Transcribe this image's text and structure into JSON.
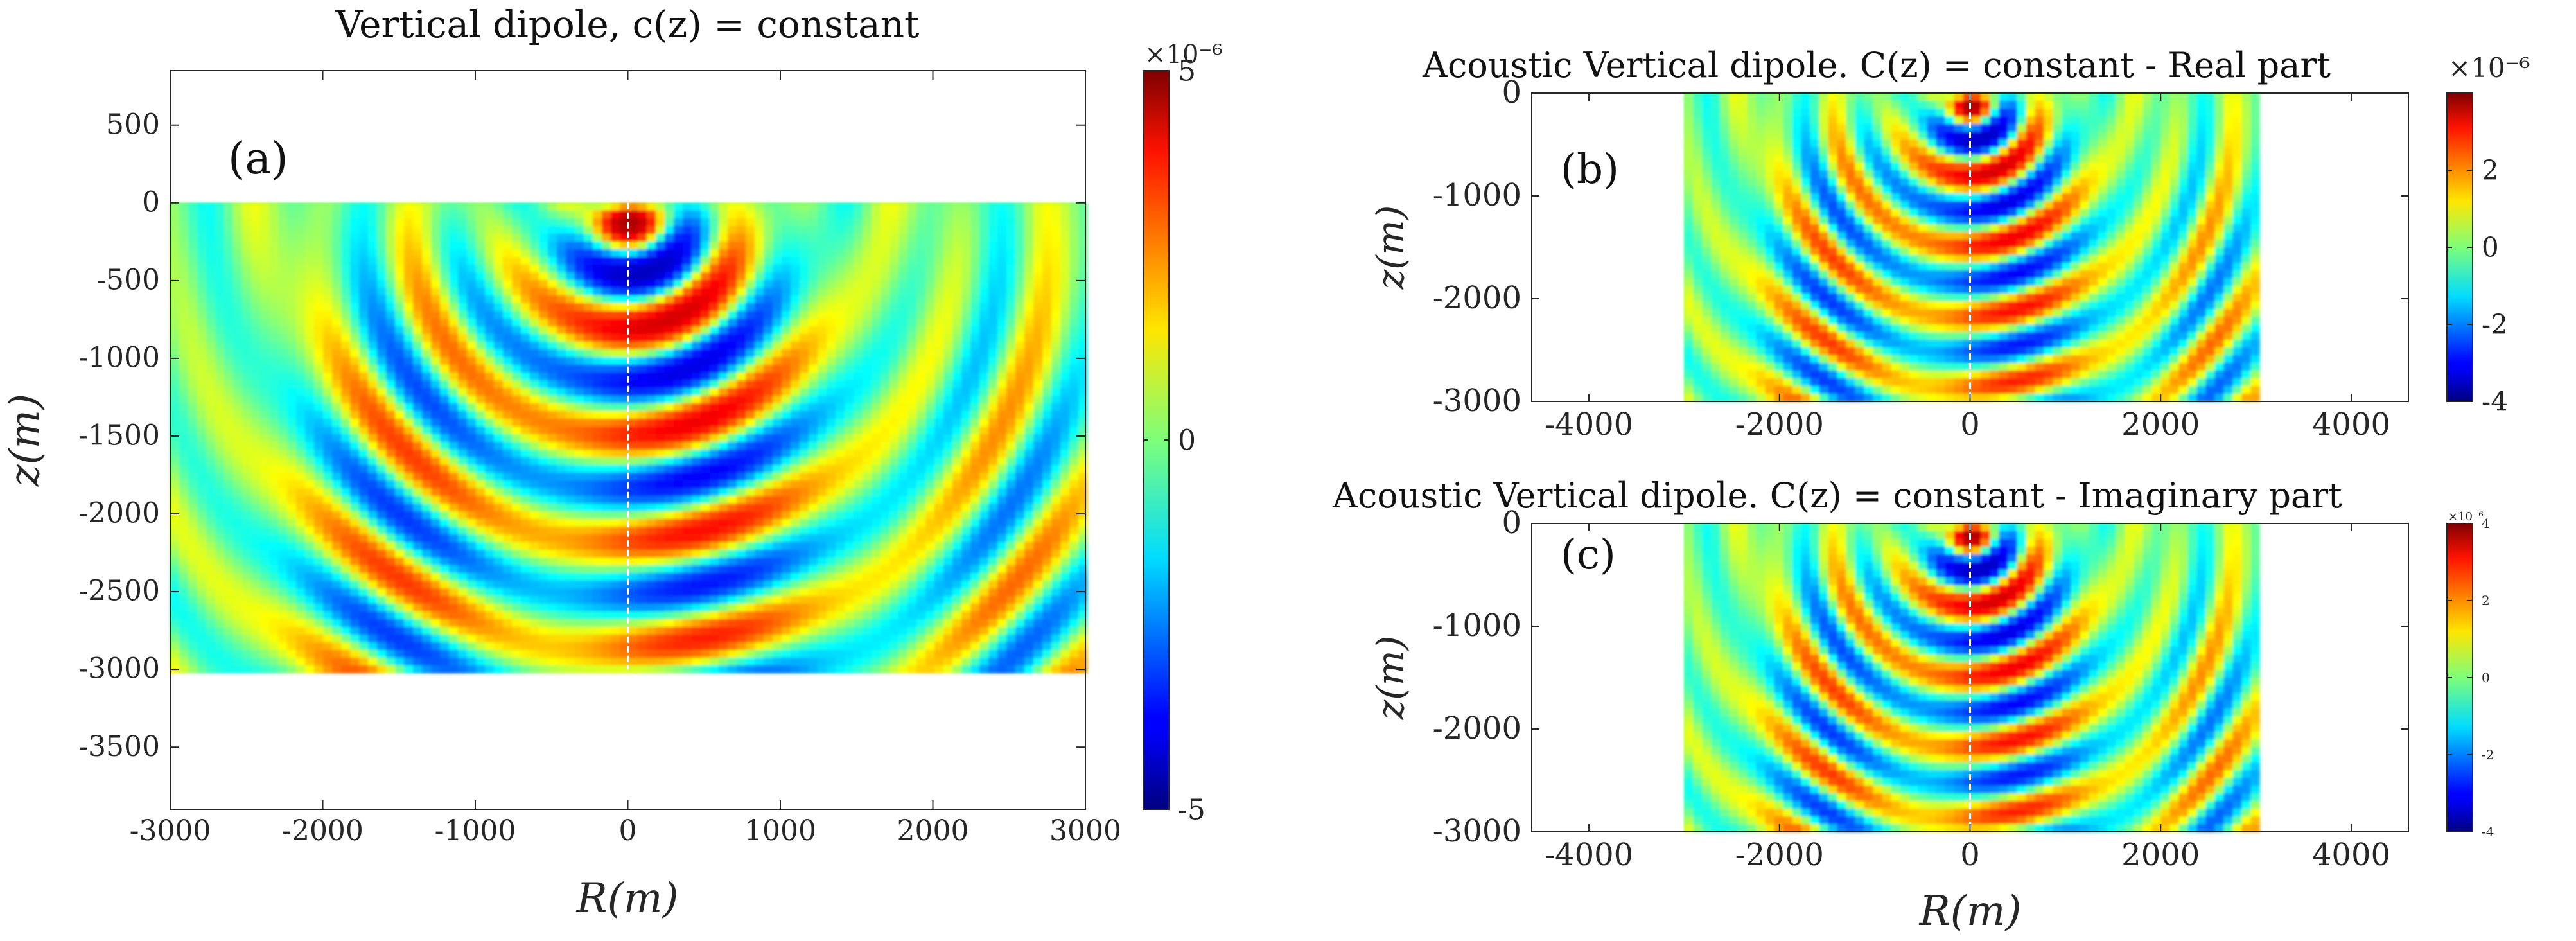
{
  "chart_data": [
    {
      "type": "heatmap",
      "panel_label": "(a)",
      "title": "Vertical dipole, c(z) = constant",
      "xlabel": "R(m)",
      "ylabel": "z(m)",
      "xlim": [
        -3000,
        3000
      ],
      "ylim": [
        -3900,
        850
      ],
      "data_extent": {
        "x": [
          -3000,
          3000
        ],
        "z": [
          -3000,
          0
        ]
      },
      "xticks": [
        -3000,
        -2000,
        -1000,
        0,
        1000,
        2000,
        3000
      ],
      "yticks": [
        500,
        0,
        -500,
        -1000,
        -1500,
        -2000,
        -2500,
        -3000,
        -3500
      ],
      "colorbar": {
        "min": -5,
        "max": 5,
        "ticks": [
          5,
          0,
          -5
        ],
        "ticklabels": [
          "5",
          "0",
          "-5"
        ],
        "exponent_label": "×10⁻⁶"
      }
    },
    {
      "type": "heatmap",
      "panel_label": "(b)",
      "title": "Acoustic Vertical dipole. C(z) = constant - Real part",
      "xlabel": "",
      "ylabel": "z(m)",
      "xlim": [
        -4600,
        4600
      ],
      "ylim": [
        3000,
        0
      ],
      "data_extent": {
        "x": [
          -3000,
          3000
        ],
        "z": [
          0,
          3000
        ]
      },
      "xticks": [
        -4000,
        -2000,
        0,
        2000,
        4000
      ],
      "yticks": [
        0,
        1000,
        2000,
        3000
      ],
      "yticklabels": [
        "0",
        "-1000",
        "-2000",
        "-3000"
      ],
      "colorbar": {
        "min": -4,
        "max": 4,
        "ticks": [
          2,
          0,
          -2,
          -4
        ],
        "ticklabels": [
          "2",
          "0",
          "-2",
          "-4"
        ],
        "exponent_label": "×10⁻⁶"
      }
    },
    {
      "type": "heatmap",
      "panel_label": "(c)",
      "title": "Acoustic Vertical dipole. C(z) = constant - Imaginary part",
      "xlabel": "R(m)",
      "ylabel": "z(m)",
      "xlim": [
        -4600,
        4600
      ],
      "ylim": [
        3000,
        0
      ],
      "data_extent": {
        "x": [
          -3000,
          3000
        ],
        "z": [
          0,
          3000
        ]
      },
      "xticks": [
        -4000,
        -2000,
        0,
        2000,
        4000
      ],
      "yticks": [
        0,
        1000,
        2000,
        3000
      ],
      "yticklabels": [
        "0",
        "-1000",
        "-2000",
        "-3000"
      ],
      "colorbar": {
        "min": -4,
        "max": 4,
        "ticks": [
          4,
          2,
          0,
          -2,
          -4
        ],
        "ticklabels": [
          "4",
          "2",
          "0",
          "-2",
          "-4"
        ],
        "exponent_label": "×10⁻⁶"
      }
    }
  ]
}
